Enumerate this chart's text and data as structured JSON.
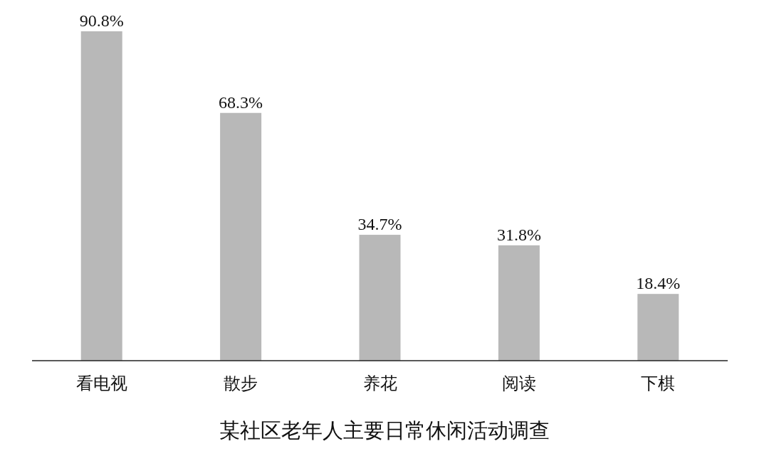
{
  "chart_data": {
    "type": "bar",
    "title": "某社区老年人主要日常休闲活动调查",
    "categories": [
      "看电视",
      "散步",
      "养花",
      "阅读",
      "下棋"
    ],
    "values": [
      90.8,
      68.3,
      34.7,
      31.8,
      18.4
    ],
    "value_labels": [
      "90.8%",
      "68.3%",
      "34.7%",
      "31.8%",
      "18.4%"
    ],
    "color": "#b8b8b8"
  }
}
